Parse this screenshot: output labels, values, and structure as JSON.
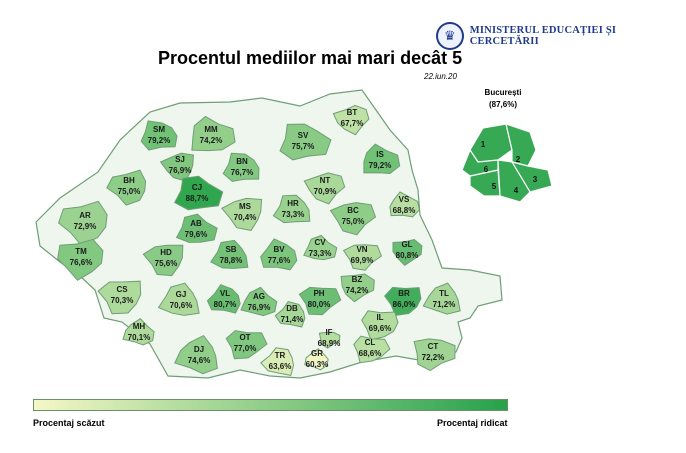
{
  "header": {
    "ministry": "MINISTERUL EDUCAȚIEI ȘI CERCETĂRII",
    "title": "Procentul mediilor mai mari decât 5",
    "date": "22.iun.20"
  },
  "map_data": {
    "palette": {
      "low": "#f4f7c6",
      "high": "#27a24a",
      "min": 60,
      "max": 90,
      "border": "#6f9e76"
    },
    "counties": [
      {
        "code": "SM",
        "value": "79,2%",
        "pct": 79.2
      },
      {
        "code": "MM",
        "value": "74,2%",
        "pct": 74.2
      },
      {
        "code": "SV",
        "value": "75,7%",
        "pct": 75.7
      },
      {
        "code": "BT",
        "value": "67,7%",
        "pct": 67.7
      },
      {
        "code": "BH",
        "value": "75,0%",
        "pct": 75.0
      },
      {
        "code": "SJ",
        "value": "76,9%",
        "pct": 76.9
      },
      {
        "code": "BN",
        "value": "76,7%",
        "pct": 76.7
      },
      {
        "code": "IS",
        "value": "79,2%",
        "pct": 79.2
      },
      {
        "code": "CJ",
        "value": "88,7%",
        "pct": 88.7
      },
      {
        "code": "NT",
        "value": "70,9%",
        "pct": 70.9
      },
      {
        "code": "AR",
        "value": "72,9%",
        "pct": 72.9
      },
      {
        "code": "MS",
        "value": "70,4%",
        "pct": 70.4
      },
      {
        "code": "HR",
        "value": "73,3%",
        "pct": 73.3
      },
      {
        "code": "VS",
        "value": "68,8%",
        "pct": 68.8
      },
      {
        "code": "AB",
        "value": "79,6%",
        "pct": 79.6
      },
      {
        "code": "BC",
        "value": "75,0%",
        "pct": 75.0
      },
      {
        "code": "TM",
        "value": "76,6%",
        "pct": 76.6
      },
      {
        "code": "HD",
        "value": "75,6%",
        "pct": 75.6
      },
      {
        "code": "SB",
        "value": "78,8%",
        "pct": 78.8
      },
      {
        "code": "BV",
        "value": "77,6%",
        "pct": 77.6
      },
      {
        "code": "CV",
        "value": "73,3%",
        "pct": 73.3
      },
      {
        "code": "VN",
        "value": "69,9%",
        "pct": 69.9
      },
      {
        "code": "GL",
        "value": "80,8%",
        "pct": 80.8
      },
      {
        "code": "CS",
        "value": "70,3%",
        "pct": 70.3
      },
      {
        "code": "GJ",
        "value": "70,6%",
        "pct": 70.6
      },
      {
        "code": "VL",
        "value": "80,7%",
        "pct": 80.7
      },
      {
        "code": "AG",
        "value": "76,9%",
        "pct": 76.9
      },
      {
        "code": "PH",
        "value": "80,0%",
        "pct": 80.0
      },
      {
        "code": "BZ",
        "value": "74,2%",
        "pct": 74.2
      },
      {
        "code": "BR",
        "value": "86,0%",
        "pct": 86.0
      },
      {
        "code": "TL",
        "value": "71,2%",
        "pct": 71.2
      },
      {
        "code": "DB",
        "value": "71,4%",
        "pct": 71.4
      },
      {
        "code": "MH",
        "value": "70,1%",
        "pct": 70.1
      },
      {
        "code": "OT",
        "value": "77,0%",
        "pct": 77.0
      },
      {
        "code": "IF",
        "value": "68,9%",
        "pct": 68.9
      },
      {
        "code": "IL",
        "value": "69,6%",
        "pct": 69.6
      },
      {
        "code": "DJ",
        "value": "74,6%",
        "pct": 74.6
      },
      {
        "code": "TR",
        "value": "63,6%",
        "pct": 63.6
      },
      {
        "code": "GR",
        "value": "60,3%",
        "pct": 60.3
      },
      {
        "code": "CL",
        "value": "68,6%",
        "pct": 68.6
      },
      {
        "code": "CT",
        "value": "72,2%",
        "pct": 72.2
      }
    ],
    "bucharest": {
      "name": "București",
      "value": "(87,6%)",
      "sectors": [
        "1",
        "2",
        "3",
        "4",
        "5",
        "6"
      ]
    }
  },
  "legend": {
    "low_label": "Procentaj scăzut",
    "high_label": "Procentaj ridicat"
  }
}
